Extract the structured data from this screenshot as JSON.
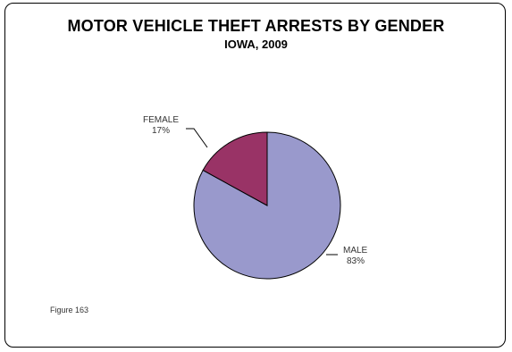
{
  "chart_data": {
    "type": "pie",
    "title": "MOTOR VEHICLE THEFT ARRESTS BY GENDER",
    "subtitle": "IOWA, 2009",
    "slices": [
      {
        "label": "MALE",
        "value": 83,
        "value_label": "83%",
        "color": "#9999CC"
      },
      {
        "label": "FEMALE",
        "value": 17,
        "value_label": "17%",
        "color": "#993366"
      }
    ],
    "legend": "none"
  },
  "figure_note": "Figure 163"
}
